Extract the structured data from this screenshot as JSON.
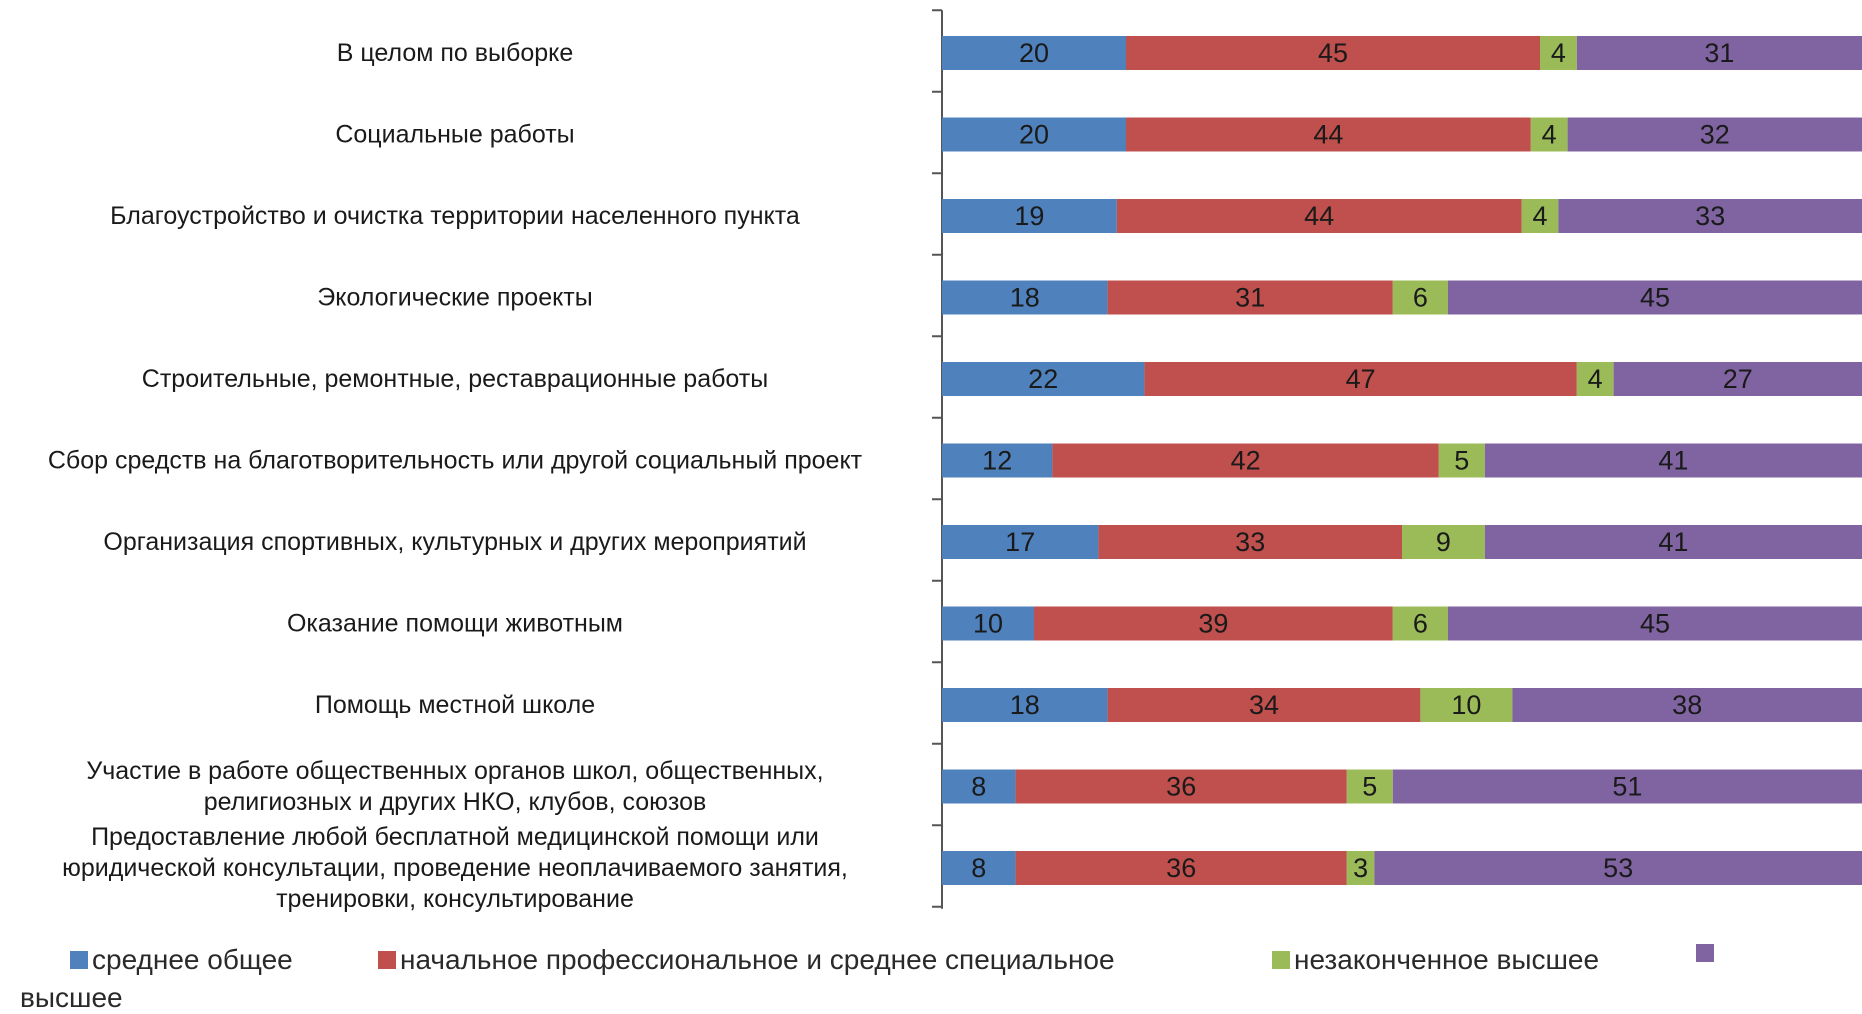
{
  "chart_data": {
    "type": "bar",
    "orientation": "horizontal",
    "stacked": true,
    "percent": true,
    "categories": [
      "В целом по выборке",
      "Социальные работы",
      "Благоустройство и очистка территории населенного пункта",
      "Экологические проекты",
      "Строительные, ремонтные, реставрационные работы",
      "Сбор средств на благотворительность или другой социальный проект",
      "Организация спортивных, культурных и других мероприятий",
      "Оказание помощи животным",
      "Помощь местной школе",
      "Участие в работе общественных органов школ, общественных, религиозных и других НКО, клубов, союзов",
      "Предоставление любой бесплатной медицинской помощи или юридической консультации, проведение неоплачиваемого занятия, тренировки, консультирование"
    ],
    "category_lines": [
      [
        "В целом по выборке"
      ],
      [
        "Социальные работы"
      ],
      [
        "Благоустройство и очистка территории населенного пункта"
      ],
      [
        "Экологические проекты"
      ],
      [
        "Строительные, ремонтные, реставрационные работы"
      ],
      [
        "Сбор средств на благотворительность или другой социальный проект"
      ],
      [
        "Организация спортивных, культурных и других мероприятий"
      ],
      [
        "Оказание помощи животным"
      ],
      [
        "Помощь местной школе"
      ],
      [
        "Участие в работе общественных органов школ, общественных,",
        "религиозных и других НКО, клубов, союзов"
      ],
      [
        "Предоставление любой бесплатной медицинской помощи или",
        "юридической консультации, проведение неоплачиваемого занятия,",
        "тренировки, консультирование"
      ]
    ],
    "series": [
      {
        "name": "среднее общее",
        "color": "#4f81bd",
        "values": [
          20,
          20,
          19,
          18,
          22,
          12,
          17,
          10,
          18,
          8,
          8
        ]
      },
      {
        "name": "начальное профессиональное и среднее специальное",
        "color": "#c0504d",
        "values": [
          45,
          44,
          44,
          31,
          47,
          42,
          33,
          39,
          34,
          36,
          36
        ]
      },
      {
        "name": "незаконченное высшее",
        "color": "#9bbb59",
        "values": [
          4,
          4,
          4,
          6,
          4,
          5,
          9,
          6,
          10,
          5,
          3
        ]
      },
      {
        "name": "высшее",
        "color": "#8064a2",
        "values": [
          31,
          32,
          33,
          45,
          27,
          41,
          41,
          45,
          38,
          51,
          53
        ]
      }
    ],
    "xlim": [
      0,
      100
    ],
    "legend_position": "bottom"
  },
  "legend": {
    "items": [
      "среднее общее",
      "начальное профессиональное и среднее специальное",
      "незаконченное высшее",
      "высшее"
    ]
  }
}
